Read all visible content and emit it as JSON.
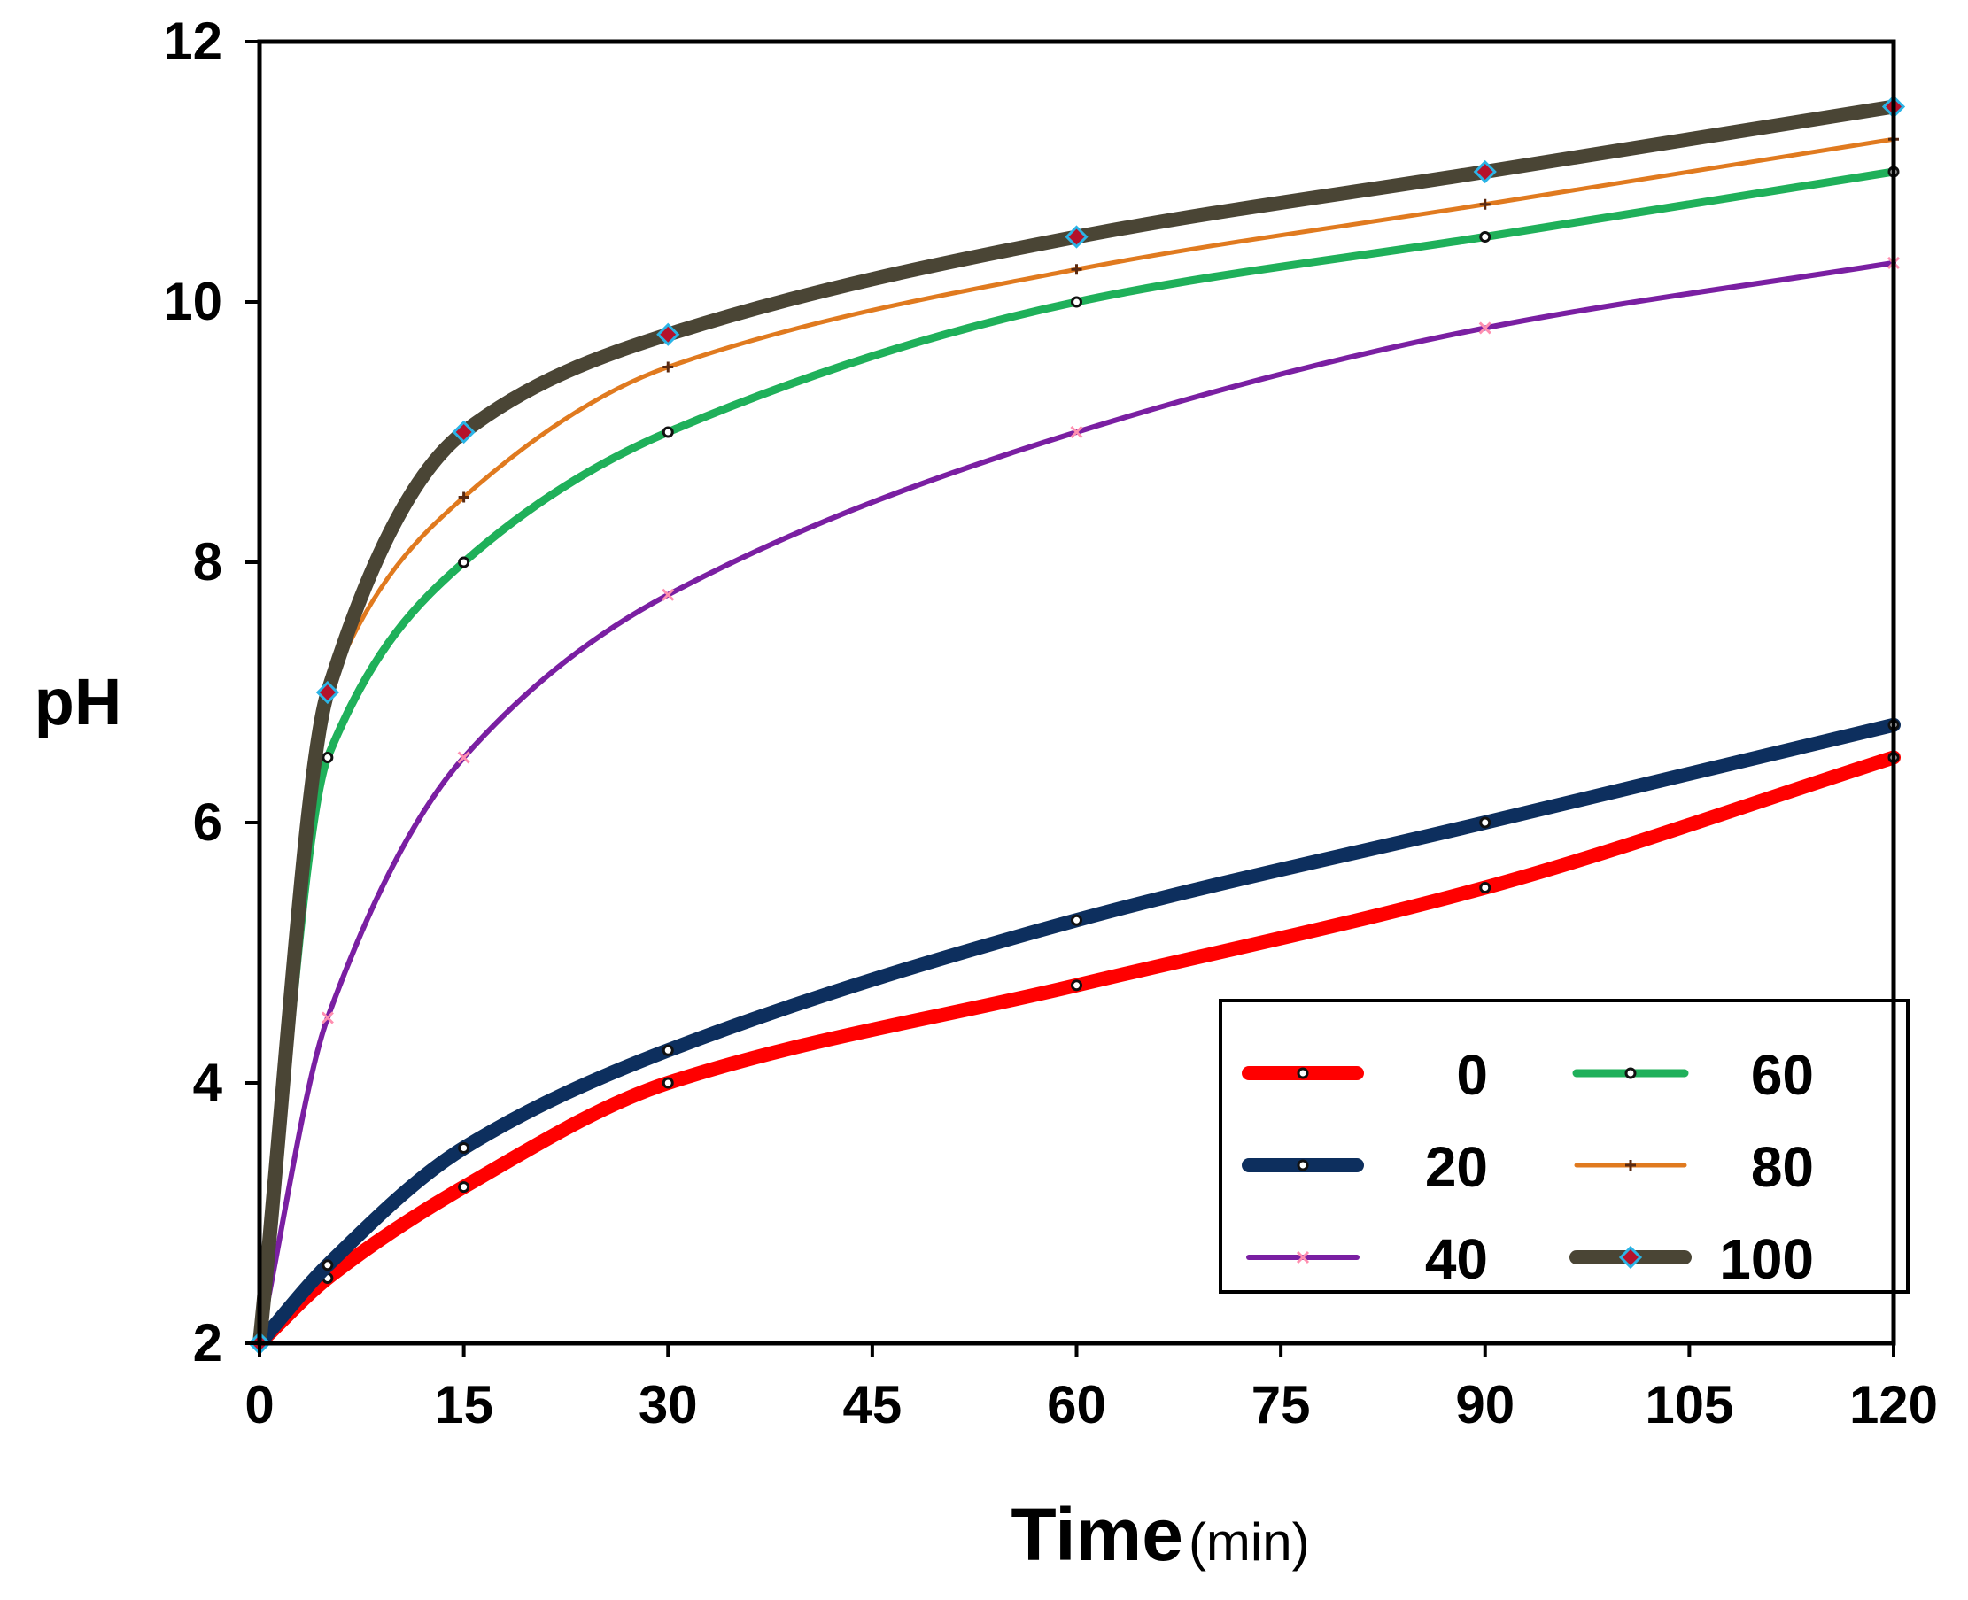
{
  "chart_data": {
    "type": "line",
    "title": "",
    "xlabel": "Time",
    "xlabel_unit": "(min)",
    "ylabel": "pH",
    "xlim": [
      0,
      120
    ],
    "ylim": [
      2,
      12
    ],
    "x_ticks": [
      "0",
      "15",
      "30",
      "45",
      "60",
      "75",
      "90",
      "105",
      "120"
    ],
    "y_ticks": [
      "2",
      "4",
      "6",
      "8",
      "10",
      "12"
    ],
    "grid": false,
    "legend_position": "bottom-right",
    "x": [
      0,
      5,
      15,
      30,
      60,
      90,
      120
    ],
    "series": [
      {
        "name": "0",
        "color": "#ff0000",
        "values": [
          2.0,
          2.5,
          3.2,
          4.0,
          4.75,
          5.5,
          6.5
        ]
      },
      {
        "name": "20",
        "color": "#0d2f5e",
        "values": [
          2.0,
          2.6,
          3.5,
          4.25,
          5.25,
          6.0,
          6.75
        ]
      },
      {
        "name": "40",
        "color": "#7a1fa2",
        "values": [
          2.0,
          4.5,
          6.5,
          7.75,
          9.0,
          9.8,
          10.3
        ]
      },
      {
        "name": "60",
        "color": "#1fb05a",
        "values": [
          2.0,
          6.5,
          8.0,
          9.0,
          10.0,
          10.5,
          11.0
        ]
      },
      {
        "name": "80",
        "color": "#e07a1f",
        "values": [
          2.0,
          7.0,
          8.5,
          9.5,
          10.25,
          10.75,
          11.25
        ]
      },
      {
        "name": "100",
        "color": "#4a4535",
        "values": [
          2.0,
          7.0,
          9.0,
          9.75,
          10.5,
          11.0,
          11.5
        ]
      }
    ]
  }
}
